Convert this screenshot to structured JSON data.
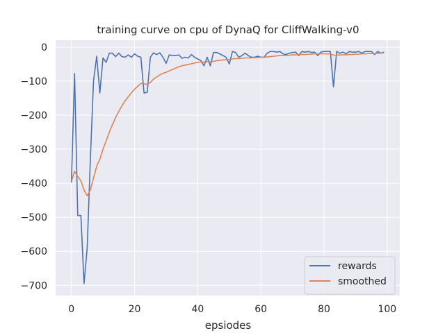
{
  "chart_data": {
    "type": "line",
    "title": "training curve on cpu of DynaQ for CliffWalking-v0",
    "xlabel": "epsiodes",
    "ylabel": "",
    "xlim": [
      -5,
      104
    ],
    "ylim": [
      -730,
      20
    ],
    "xticks": [
      0,
      20,
      40,
      60,
      80,
      100
    ],
    "yticks": [
      0,
      -100,
      -200,
      -300,
      -400,
      -500,
      -600,
      -700
    ],
    "xtick_labels": [
      "0",
      "20",
      "40",
      "60",
      "80",
      "100"
    ],
    "ytick_labels": [
      "0",
      "−100",
      "−200",
      "−300",
      "−400",
      "−500",
      "−600",
      "−700"
    ],
    "grid": true,
    "legend_position": "lower-right",
    "colors": {
      "background": "#eaeaf2",
      "grid": "#ffffff",
      "rewards": "#4c72b0",
      "smoothed": "#dd8452"
    },
    "x": [
      0,
      1,
      2,
      3,
      4,
      5,
      6,
      7,
      8,
      9,
      10,
      11,
      12,
      13,
      14,
      15,
      16,
      17,
      18,
      19,
      20,
      21,
      22,
      23,
      24,
      25,
      26,
      27,
      28,
      29,
      30,
      31,
      32,
      33,
      34,
      35,
      36,
      37,
      38,
      39,
      40,
      41,
      42,
      43,
      44,
      45,
      46,
      47,
      48,
      49,
      50,
      51,
      52,
      53,
      54,
      55,
      56,
      57,
      58,
      59,
      60,
      61,
      62,
      63,
      64,
      65,
      66,
      67,
      68,
      69,
      70,
      71,
      72,
      73,
      74,
      75,
      76,
      77,
      78,
      79,
      80,
      81,
      82,
      83,
      84,
      85,
      86,
      87,
      88,
      89,
      90,
      91,
      92,
      93,
      94,
      95,
      96,
      97,
      98,
      99
    ],
    "series": [
      {
        "name": "rewards",
        "values": [
          -398,
          -78,
          -495,
          -495,
          -695,
          -590,
          -330,
          -100,
          -27,
          -135,
          -32,
          -45,
          -18,
          -18,
          -28,
          -18,
          -28,
          -30,
          -23,
          -30,
          -20,
          -27,
          -30,
          -135,
          -133,
          -30,
          -17,
          -22,
          -17,
          -30,
          -48,
          -23,
          -25,
          -25,
          -23,
          -33,
          -30,
          -32,
          -22,
          -30,
          -35,
          -40,
          -55,
          -30,
          -55,
          -16,
          -16,
          -20,
          -25,
          -30,
          -50,
          -13,
          -16,
          -30,
          -25,
          -18,
          -25,
          -30,
          -30,
          -27,
          -30,
          -30,
          -18,
          -13,
          -13,
          -15,
          -13,
          -20,
          -22,
          -18,
          -16,
          -15,
          -25,
          -13,
          -15,
          -13,
          -16,
          -15,
          -25,
          -15,
          -13,
          -13,
          -13,
          -117,
          -13,
          -18,
          -15,
          -20,
          -13,
          -15,
          -15,
          -13,
          -18,
          -13,
          -13,
          -13,
          -22,
          -13,
          -18,
          -15
        ]
      },
      {
        "name": "smoothed",
        "values": [
          -395,
          -365,
          -380,
          -393,
          -420,
          -437,
          -420,
          -385,
          -350,
          -330,
          -300,
          -276,
          -250,
          -228,
          -207,
          -189,
          -173,
          -158,
          -146,
          -134,
          -124,
          -115,
          -107,
          -108,
          -110,
          -104,
          -94,
          -88,
          -82,
          -77,
          -74,
          -70,
          -66,
          -62,
          -58,
          -55,
          -53,
          -51,
          -49,
          -47,
          -45,
          -44,
          -44,
          -43,
          -43,
          -42,
          -40,
          -39,
          -38,
          -37,
          -37,
          -35,
          -34,
          -34,
          -33,
          -32,
          -32,
          -32,
          -31,
          -31,
          -30,
          -30,
          -29,
          -28,
          -27,
          -26,
          -25,
          -25,
          -25,
          -24,
          -23,
          -23,
          -22,
          -22,
          -22,
          -21,
          -21,
          -20,
          -20,
          -20,
          -20,
          -20,
          -20,
          -24,
          -24,
          -23,
          -23,
          -23,
          -22,
          -22,
          -21,
          -21,
          -20,
          -20,
          -19,
          -19,
          -19,
          -18,
          -18,
          -17
        ]
      }
    ]
  }
}
